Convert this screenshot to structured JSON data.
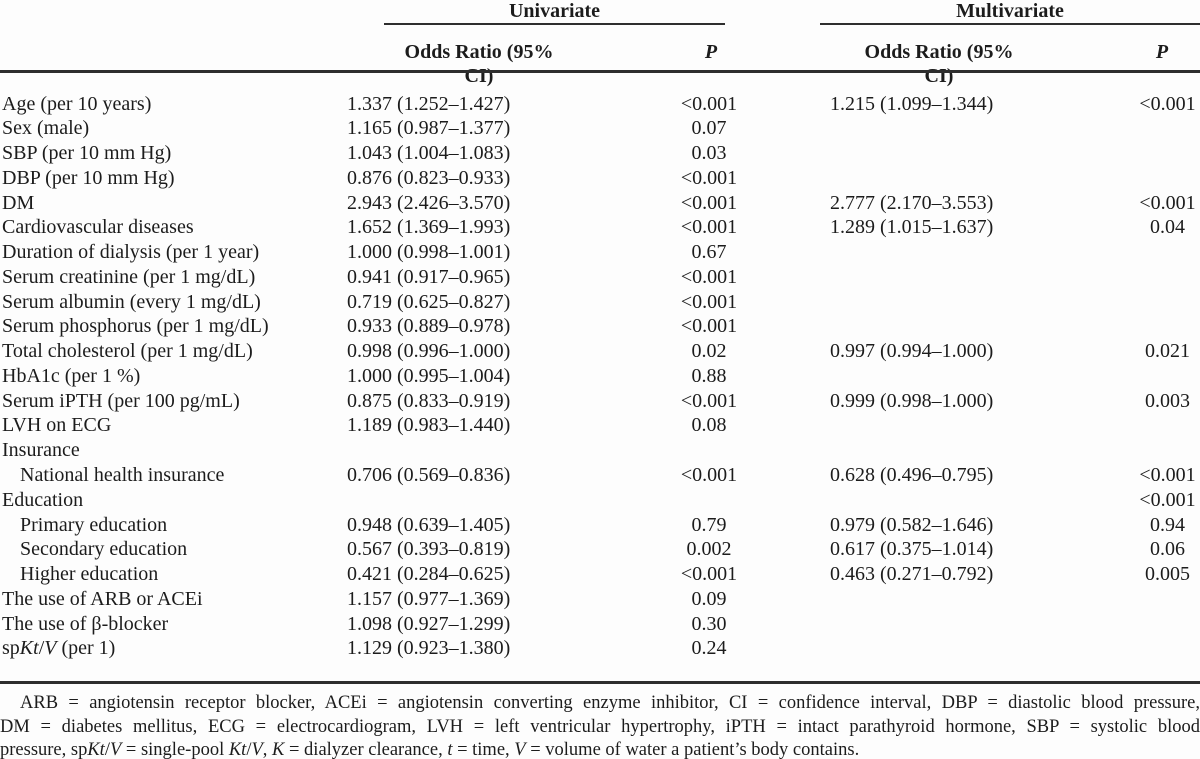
{
  "table": {
    "groups": [
      {
        "label": "Univariate"
      },
      {
        "label": "Multivariate"
      }
    ],
    "headers": {
      "odds_ratio_univariate": "Odds Ratio (95% CI)",
      "p_univariate": "P",
      "odds_ratio_multivariate": "Odds Ratio (95% CI)",
      "p_multivariate": "P"
    },
    "rows": [
      {
        "label": "Age (per 10 years)",
        "uni_or": "1.337 (1.252–1.427)",
        "uni_p": "<0.001",
        "multi_or": "1.215 (1.099–1.344)",
        "multi_p": "<0.001"
      },
      {
        "label": "Sex (male)",
        "uni_or": "1.165 (0.987–1.377)",
        "uni_p": "0.07"
      },
      {
        "label": "SBP (per 10 mm Hg)",
        "uni_or": "1.043 (1.004–1.083)",
        "uni_p": "0.03"
      },
      {
        "label": "DBP (per 10 mm Hg)",
        "uni_or": "0.876 (0.823–0.933)",
        "uni_p": "<0.001"
      },
      {
        "label": "DM",
        "uni_or": "2.943 (2.426–3.570)",
        "uni_p": "<0.001",
        "multi_or": "2.777 (2.170–3.553)",
        "multi_p": "<0.001"
      },
      {
        "label": "Cardiovascular diseases",
        "uni_or": "1.652 (1.369–1.993)",
        "uni_p": "<0.001",
        "multi_or": "1.289 (1.015–1.637)",
        "multi_p": "0.04"
      },
      {
        "label": "Duration of dialysis (per 1 year)",
        "uni_or": "1.000 (0.998–1.001)",
        "uni_p": "0.67"
      },
      {
        "label": "Serum creatinine (per 1 mg/dL)",
        "uni_or": "0.941 (0.917–0.965)",
        "uni_p": "<0.001"
      },
      {
        "label": "Serum albumin (every 1 mg/dL)",
        "uni_or": "0.719 (0.625–0.827)",
        "uni_p": "<0.001"
      },
      {
        "label": "Serum phosphorus (per 1 mg/dL)",
        "uni_or": "0.933 (0.889–0.978)",
        "uni_p": "<0.001"
      },
      {
        "label": "Total cholesterol (per 1 mg/dL)",
        "uni_or": "0.998 (0.996–1.000)",
        "uni_p": "0.02",
        "multi_or": "0.997 (0.994–1.000)",
        "multi_p": "0.021"
      },
      {
        "label": "HbA1c (per 1 %)",
        "uni_or": "1.000 (0.995–1.004)",
        "uni_p": "0.88"
      },
      {
        "label": "Serum iPTH (per 100 pg/mL)",
        "uni_or": "0.875 (0.833–0.919)",
        "uni_p": "<0.001",
        "multi_or": "0.999 (0.998–1.000)",
        "multi_p": "0.003"
      },
      {
        "label": "LVH on ECG",
        "uni_or": "1.189 (0.983–1.440)",
        "uni_p": "0.08"
      },
      {
        "label": "Insurance"
      },
      {
        "label": "National health insurance",
        "indent": true,
        "uni_or": "0.706 (0.569–0.836)",
        "uni_p": "<0.001",
        "multi_or": "0.628 (0.496–0.795)",
        "multi_p": "<0.001"
      },
      {
        "label": "Education",
        "multi_p": "<0.001"
      },
      {
        "label": "Primary education",
        "indent": true,
        "uni_or": "0.948 (0.639–1.405)",
        "uni_p": "0.79",
        "multi_or": "0.979 (0.582–1.646)",
        "multi_p": "0.94"
      },
      {
        "label": "Secondary education",
        "indent": true,
        "uni_or": "0.567 (0.393–0.819)",
        "uni_p": "0.002",
        "multi_or": "0.617 (0.375–1.014)",
        "multi_p": "0.06"
      },
      {
        "label": "Higher education",
        "indent": true,
        "uni_or": "0.421 (0.284–0.625)",
        "uni_p": "<0.001",
        "multi_or": "0.463 (0.271–0.792)",
        "multi_p": "0.005"
      },
      {
        "label": "The use of ARB or ACEi",
        "uni_or": "1.157 (0.977–1.369)",
        "uni_p": "0.09"
      },
      {
        "label": "The use of β-blocker",
        "uni_or": "1.098 (0.927–1.299)",
        "uni_p": "0.30"
      },
      {
        "label_segments": [
          {
            "text": "sp"
          },
          {
            "text": "Kt",
            "italic": true
          },
          {
            "text": "/"
          },
          {
            "text": "V",
            "italic": true
          },
          {
            "text": " (per 1)"
          }
        ],
        "uni_or": "1.129 (0.923–1.380)",
        "uni_p": "0.24"
      }
    ],
    "footnote_lines": [
      {
        "indent": true,
        "justify": true,
        "segments": [
          {
            "text": "ARB = angiotensin receptor blocker, ACEi = angiotensin converting enzyme inhibitor, CI = confidence interval, DBP = diastolic blood pressure,"
          }
        ]
      },
      {
        "justify": true,
        "segments": [
          {
            "text": "DM = diabetes mellitus, ECG = electrocardiogram, LVH = left ventricular hypertrophy, iPTH = intact parathyroid hormone, SBP = systolic blood"
          }
        ]
      },
      {
        "segments": [
          {
            "text": "pressure, sp"
          },
          {
            "text": "Kt",
            "italic": true
          },
          {
            "text": "/"
          },
          {
            "text": "V",
            "italic": true
          },
          {
            "text": " = single-pool "
          },
          {
            "text": "Kt",
            "italic": true
          },
          {
            "text": "/"
          },
          {
            "text": "V",
            "italic": true
          },
          {
            "text": ", "
          },
          {
            "text": "K",
            "italic": true
          },
          {
            "text": " = dialyzer clearance, "
          },
          {
            "text": "t",
            "italic": true
          },
          {
            "text": " = time, "
          },
          {
            "text": "V",
            "italic": true
          },
          {
            "text": " = volume of water a patient’s body contains."
          }
        ]
      }
    ]
  }
}
